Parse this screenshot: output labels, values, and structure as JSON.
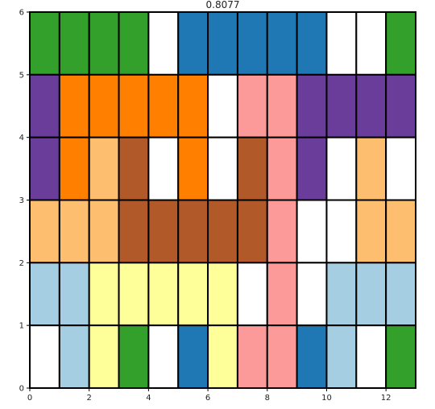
{
  "chart_data": {
    "type": "heatmap",
    "title": "0.8077",
    "xlabel": "",
    "ylabel": "",
    "xlim": [
      0,
      13
    ],
    "ylim": [
      0,
      6
    ],
    "x_ticks": [
      0,
      2,
      4,
      6,
      8,
      10,
      12
    ],
    "x_tick_labels": [
      "0",
      "2",
      "4",
      "6",
      "8",
      "10",
      "12"
    ],
    "y_ticks": [
      0,
      1,
      2,
      3,
      4,
      5,
      6
    ],
    "y_tick_labels": [
      "0",
      "1",
      "2",
      "3",
      "4",
      "5",
      "6"
    ],
    "grid": false,
    "columns": 13,
    "rows": 6,
    "palette": {
      "G": "#33a02c",
      "B": "#1f78b4",
      "O": "#ff7f00",
      "P": "#6a3d9a",
      "K": "#fb9a99",
      "T": "#fdbf6f",
      "R": "#b15928",
      "L": "#a6cee3",
      "Y": "#ffff99",
      "W": "#ffffff"
    },
    "grid_rows_top_to_bottom": [
      [
        "G",
        "G",
        "G",
        "G",
        "W",
        "B",
        "B",
        "B",
        "B",
        "B",
        "W",
        "W",
        "G"
      ],
      [
        "P",
        "O",
        "O",
        "O",
        "O",
        "O",
        "W",
        "K",
        "K",
        "P",
        "P",
        "P",
        "P"
      ],
      [
        "P",
        "O",
        "T",
        "R",
        "W",
        "O",
        "W",
        "R",
        "K",
        "P",
        "W",
        "T",
        "W"
      ],
      [
        "T",
        "T",
        "T",
        "R",
        "R",
        "R",
        "R",
        "R",
        "K",
        "W",
        "W",
        "T",
        "T"
      ],
      [
        "L",
        "L",
        "Y",
        "Y",
        "Y",
        "Y",
        "Y",
        "W",
        "K",
        "W",
        "L",
        "L",
        "L"
      ],
      [
        "W",
        "L",
        "Y",
        "G",
        "W",
        "B",
        "Y",
        "K",
        "K",
        "B",
        "L",
        "W",
        "G"
      ]
    ]
  }
}
